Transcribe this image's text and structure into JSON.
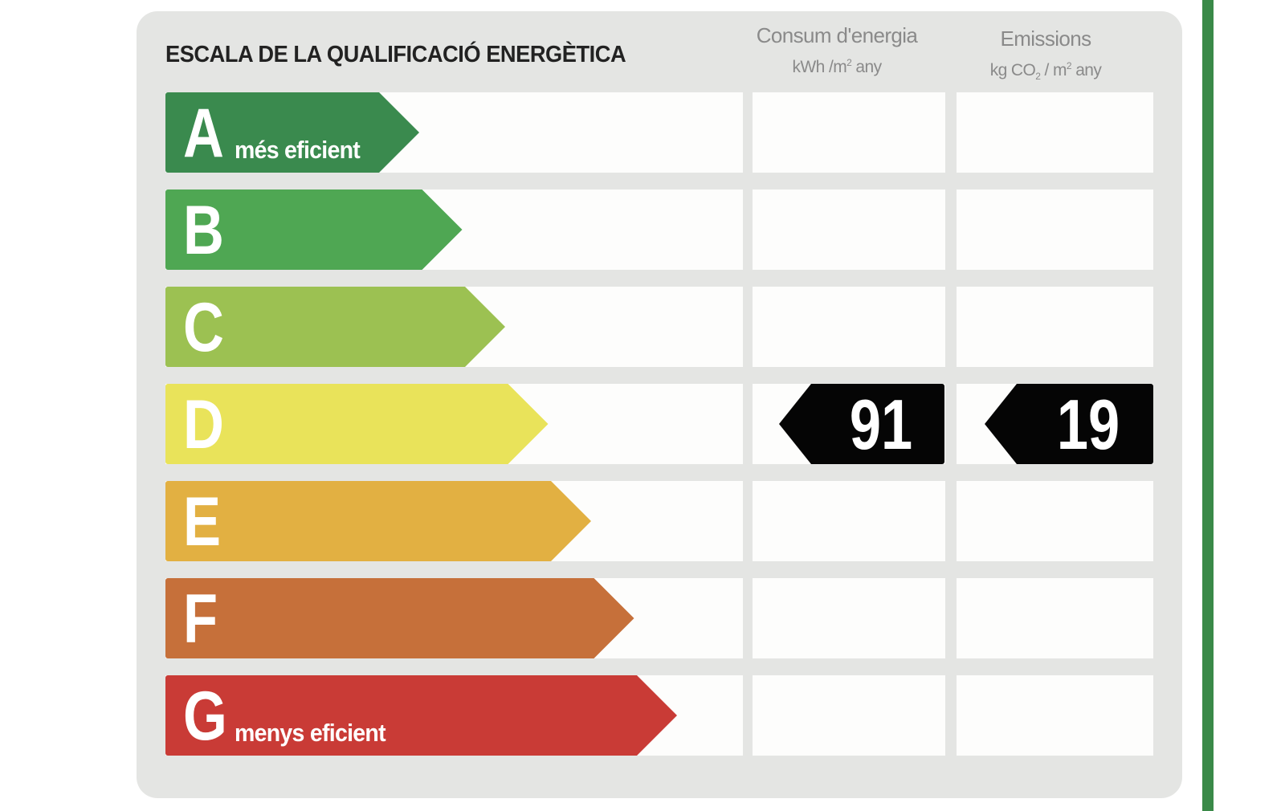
{
  "title": "ESCALA DE LA QUALIFICACIÓ ENERGÈTICA",
  "columns": {
    "energy": {
      "label": "Consum d'energia",
      "unit_prefix": "kWh /m",
      "unit_sup": "2",
      "unit_suffix": " any"
    },
    "emissions": {
      "label": "Emissions",
      "unit_prefix": "kg CO",
      "unit_sub": "2",
      "unit_mid": " / m",
      "unit_sup": "2",
      "unit_suffix": " any"
    }
  },
  "classes": [
    {
      "letter": "A",
      "note": "més eficient",
      "color": "#3a8a4e"
    },
    {
      "letter": "B",
      "note": "",
      "color": "#4fa753"
    },
    {
      "letter": "C",
      "note": "",
      "color": "#9cc152"
    },
    {
      "letter": "D",
      "note": "",
      "color": "#e9e35a"
    },
    {
      "letter": "E",
      "note": "",
      "color": "#e2b042"
    },
    {
      "letter": "F",
      "note": "",
      "color": "#c6703a"
    },
    {
      "letter": "G",
      "note": "menys eficient",
      "color": "#c93b36"
    }
  ],
  "rating": {
    "class": "D",
    "energy_value": "91",
    "emissions_value": "19"
  },
  "colors": {
    "panel": "#e4e5e3",
    "accent_line": "#3a8a48",
    "badge": "#050505"
  }
}
